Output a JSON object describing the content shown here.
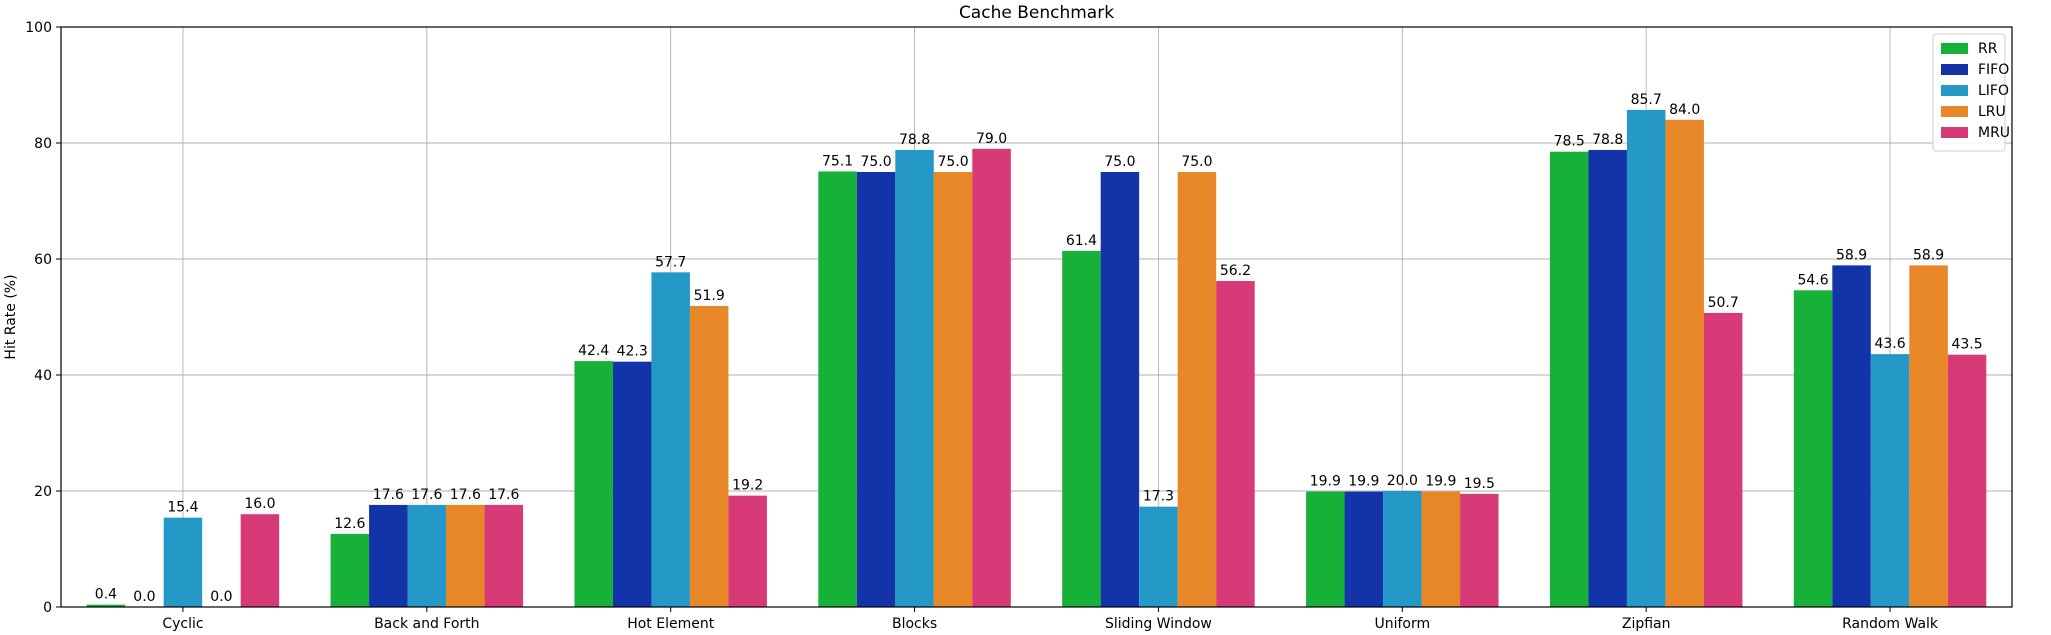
{
  "chart_data": {
    "type": "bar",
    "title": "Cache Benchmark",
    "xlabel": "",
    "ylabel": "Hit Rate (%)",
    "ylim": [
      0,
      100
    ],
    "yticks": [
      0,
      20,
      40,
      60,
      80,
      100
    ],
    "grid": true,
    "legend_position": "top-right",
    "categories": [
      "Cyclic",
      "Back and Forth",
      "Hot Element",
      "Blocks",
      "Sliding Window",
      "Uniform",
      "Zipfian",
      "Random Walk"
    ],
    "series": [
      {
        "name": "RR",
        "color": "#17b13a",
        "values": [
          0.4,
          12.6,
          42.4,
          75.1,
          61.4,
          19.9,
          78.5,
          54.6
        ]
      },
      {
        "name": "FIFO",
        "color": "#1234a8",
        "values": [
          0.0,
          17.6,
          42.3,
          75.0,
          75.0,
          19.9,
          78.8,
          58.9
        ]
      },
      {
        "name": "LIFO",
        "color": "#2498c6",
        "values": [
          15.4,
          17.6,
          57.7,
          78.8,
          17.3,
          20.0,
          85.7,
          43.6
        ]
      },
      {
        "name": "LRU",
        "color": "#e88727",
        "values": [
          0.0,
          17.6,
          51.9,
          75.0,
          75.0,
          19.9,
          84.0,
          58.9
        ]
      },
      {
        "name": "MRU",
        "color": "#d83a78",
        "values": [
          16.0,
          17.6,
          19.2,
          79.0,
          56.2,
          19.5,
          50.7,
          43.5
        ]
      }
    ]
  }
}
